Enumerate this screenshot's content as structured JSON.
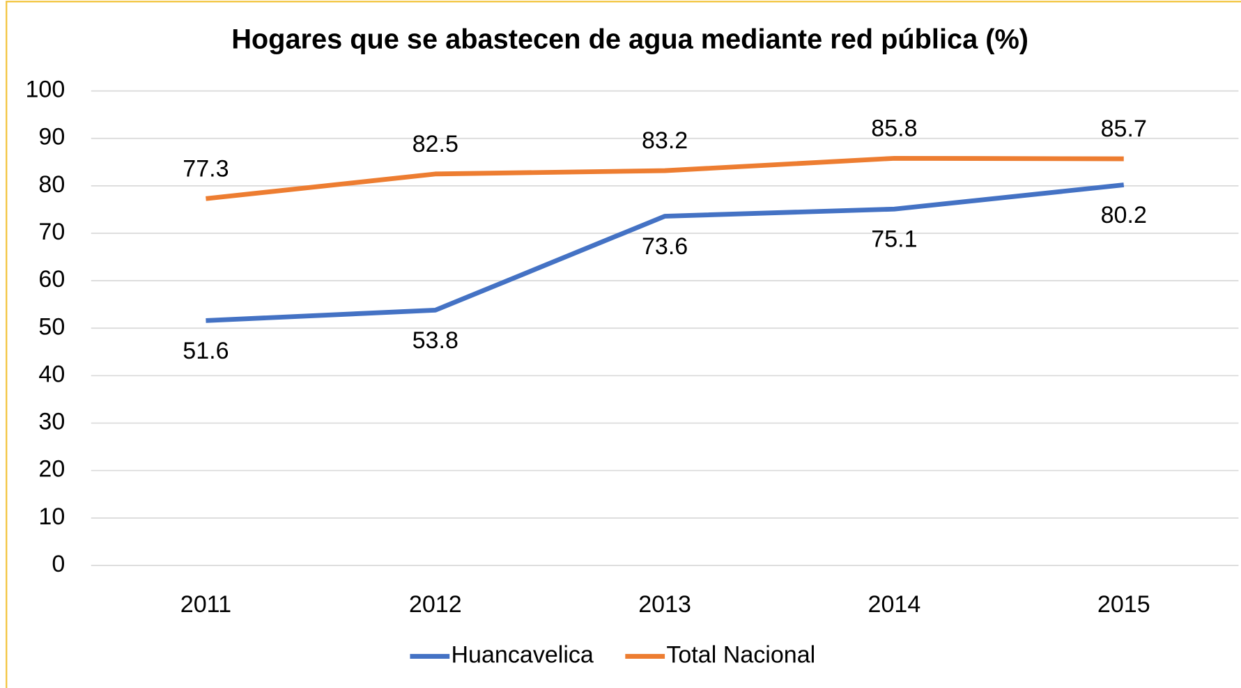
{
  "chart_data": {
    "type": "line",
    "title": "Hogares que se abastecen de agua mediante red pública (%)",
    "categories": [
      "2011",
      "2012",
      "2013",
      "2014",
      "2015"
    ],
    "series": [
      {
        "name": "Huancavelica",
        "color": "#4472c4",
        "values": [
          51.6,
          53.8,
          73.6,
          75.1,
          80.2
        ]
      },
      {
        "name": "Total Nacional",
        "color": "#ed7d31",
        "values": [
          77.3,
          82.5,
          83.2,
          85.8,
          85.7
        ]
      }
    ],
    "ylim": [
      0,
      100
    ],
    "yticks": [
      0,
      10,
      20,
      30,
      40,
      50,
      60,
      70,
      80,
      90,
      100
    ],
    "grid": true,
    "legend": "bottom"
  }
}
